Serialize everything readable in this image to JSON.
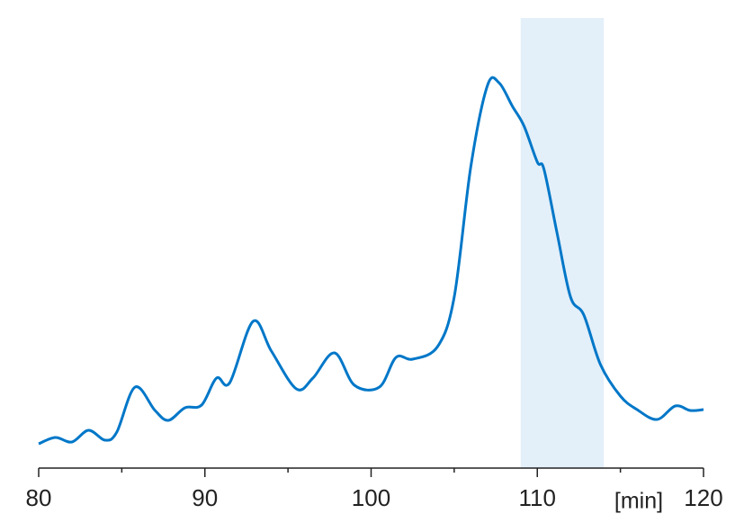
{
  "chart_data": {
    "type": "line",
    "xlabel": "[min]",
    "x": [
      80,
      81,
      82,
      83,
      84,
      84.7,
      85.8,
      87,
      87.8,
      88.8,
      89.8,
      90.7,
      91.5,
      92.9,
      94,
      95.5,
      96.5,
      97.8,
      99,
      100.5,
      101.5,
      102.5,
      104,
      105,
      106,
      107,
      107.7,
      108.5,
      109.2,
      110,
      110.4,
      111.2,
      112,
      112.8,
      113.8,
      115,
      116,
      117.2,
      118.3,
      119.2,
      120
    ],
    "series": [
      {
        "color": "#0077c8",
        "values": [
          5.4,
          6.8,
          5.8,
          8.4,
          6.2,
          8,
          18,
          12.8,
          10.6,
          13.4,
          14,
          20,
          19,
          32.6,
          26,
          17.6,
          20,
          25.6,
          18.4,
          18,
          24.6,
          24.2,
          27,
          38,
          67,
          85,
          85.6,
          80.4,
          76,
          68,
          66.4,
          52,
          38,
          34,
          23,
          16,
          13,
          10.8,
          13.8,
          12.8,
          13
        ]
      }
    ],
    "xlim": [
      80,
      120
    ],
    "xticks": [
      80,
      90,
      100,
      110,
      120
    ],
    "xminorticks": [
      85,
      95,
      105,
      115
    ],
    "ylim": [
      0,
      100
    ],
    "highlight": {
      "range": [
        109,
        114
      ],
      "color": "#e3eff9"
    }
  }
}
